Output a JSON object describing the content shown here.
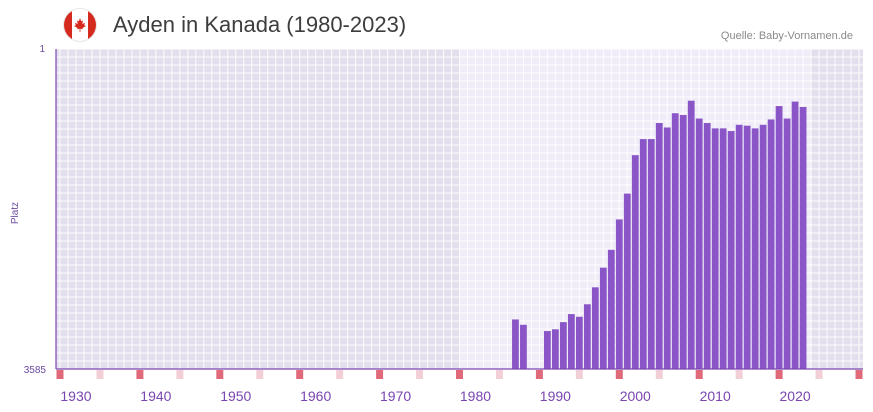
{
  "header": {
    "flag_icon": "canada-flag-icon",
    "title": "Ayden in Kanada (1980-2023)",
    "source": "Quelle: Baby-Vornamen.de"
  },
  "colors": {
    "bar": "#8a55c7",
    "axis": "#7a46b0",
    "marker": "#e06a7a",
    "marker_light": "#f2cfd6",
    "bg_outer": "#e4dfec",
    "bg_inner": "#f1edf8"
  },
  "chart_data": {
    "type": "bar",
    "title": "Ayden in Kanada (1980-2023)",
    "ylabel": "Platz",
    "y_axis_inverted": true,
    "ylim": [
      3585,
      1
    ],
    "ytick_labels": [
      "1",
      "3585"
    ],
    "xlim": [
      1927.5,
      2028.5
    ],
    "x_tick_values": [
      1930,
      1940,
      1950,
      1960,
      1970,
      1980,
      1990,
      2000,
      2010,
      2020
    ],
    "x_tick_labels": [
      "1930",
      "1940",
      "1950",
      "1960",
      "1970",
      "1980",
      "1990",
      "2000",
      "2010",
      "2020"
    ],
    "shaded_range": [
      1978,
      2022
    ],
    "series": [
      {
        "name": "Ayden",
        "years": [
          1985,
          1986,
          1989,
          1990,
          1991,
          1992,
          1993,
          1994,
          1995,
          1996,
          1997,
          1998,
          1999,
          2000,
          2001,
          2002,
          2003,
          2004,
          2005,
          2006,
          2007,
          2008,
          2009,
          2010,
          2011,
          2012,
          2013,
          2014,
          2015,
          2016,
          2017,
          2018,
          2019,
          2020,
          2021
        ],
        "ranks": [
          3030,
          3090,
          3160,
          3140,
          3060,
          2970,
          3000,
          2860,
          2670,
          2450,
          2250,
          1910,
          1620,
          1190,
          1010,
          1010,
          830,
          880,
          720,
          740,
          580,
          780,
          830,
          890,
          890,
          920,
          850,
          860,
          890,
          850,
          790,
          640,
          780,
          590,
          650
        ]
      }
    ]
  }
}
